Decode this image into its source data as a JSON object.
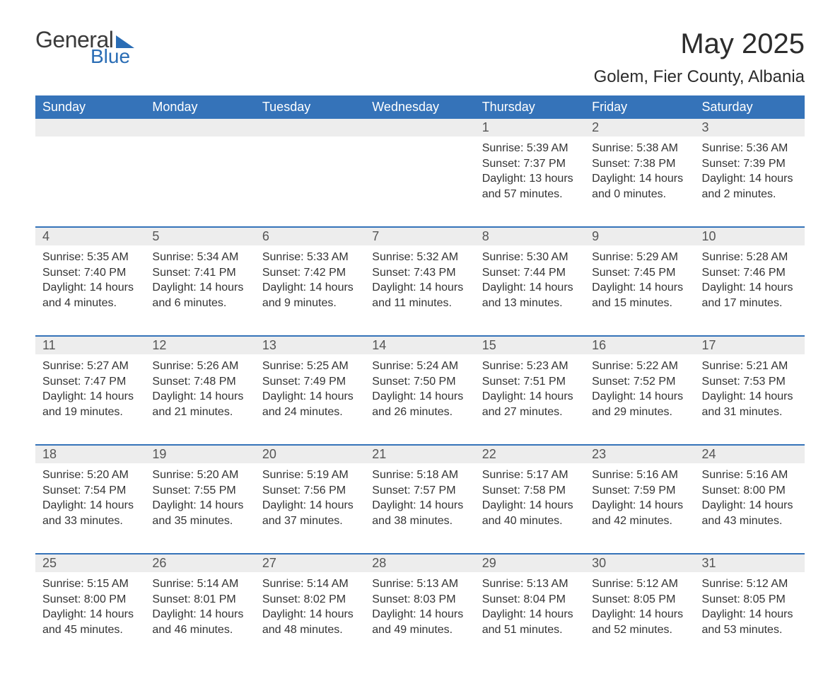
{
  "logo": {
    "text1": "General",
    "text2": "Blue",
    "triangle_color": "#2a6db5"
  },
  "title": "May 2025",
  "location": "Golem, Fier County, Albania",
  "colors": {
    "header_bg": "#3573b9",
    "header_text": "#ffffff",
    "daynum_bg": "#ededed",
    "row_border": "#3573b9",
    "body_text": "#333333",
    "title_text": "#2c2c2c"
  },
  "fonts": {
    "title_size": 40,
    "location_size": 24,
    "th_size": 18,
    "cell_size": 16
  },
  "weekdays": [
    "Sunday",
    "Monday",
    "Tuesday",
    "Wednesday",
    "Thursday",
    "Friday",
    "Saturday"
  ],
  "weeks": [
    [
      null,
      null,
      null,
      null,
      {
        "n": "1",
        "sunrise": "5:39 AM",
        "sunset": "7:37 PM",
        "dl1": "Daylight: 13 hours",
        "dl2": "and 57 minutes."
      },
      {
        "n": "2",
        "sunrise": "5:38 AM",
        "sunset": "7:38 PM",
        "dl1": "Daylight: 14 hours",
        "dl2": "and 0 minutes."
      },
      {
        "n": "3",
        "sunrise": "5:36 AM",
        "sunset": "7:39 PM",
        "dl1": "Daylight: 14 hours",
        "dl2": "and 2 minutes."
      }
    ],
    [
      {
        "n": "4",
        "sunrise": "5:35 AM",
        "sunset": "7:40 PM",
        "dl1": "Daylight: 14 hours",
        "dl2": "and 4 minutes."
      },
      {
        "n": "5",
        "sunrise": "5:34 AM",
        "sunset": "7:41 PM",
        "dl1": "Daylight: 14 hours",
        "dl2": "and 6 minutes."
      },
      {
        "n": "6",
        "sunrise": "5:33 AM",
        "sunset": "7:42 PM",
        "dl1": "Daylight: 14 hours",
        "dl2": "and 9 minutes."
      },
      {
        "n": "7",
        "sunrise": "5:32 AM",
        "sunset": "7:43 PM",
        "dl1": "Daylight: 14 hours",
        "dl2": "and 11 minutes."
      },
      {
        "n": "8",
        "sunrise": "5:30 AM",
        "sunset": "7:44 PM",
        "dl1": "Daylight: 14 hours",
        "dl2": "and 13 minutes."
      },
      {
        "n": "9",
        "sunrise": "5:29 AM",
        "sunset": "7:45 PM",
        "dl1": "Daylight: 14 hours",
        "dl2": "and 15 minutes."
      },
      {
        "n": "10",
        "sunrise": "5:28 AM",
        "sunset": "7:46 PM",
        "dl1": "Daylight: 14 hours",
        "dl2": "and 17 minutes."
      }
    ],
    [
      {
        "n": "11",
        "sunrise": "5:27 AM",
        "sunset": "7:47 PM",
        "dl1": "Daylight: 14 hours",
        "dl2": "and 19 minutes."
      },
      {
        "n": "12",
        "sunrise": "5:26 AM",
        "sunset": "7:48 PM",
        "dl1": "Daylight: 14 hours",
        "dl2": "and 21 minutes."
      },
      {
        "n": "13",
        "sunrise": "5:25 AM",
        "sunset": "7:49 PM",
        "dl1": "Daylight: 14 hours",
        "dl2": "and 24 minutes."
      },
      {
        "n": "14",
        "sunrise": "5:24 AM",
        "sunset": "7:50 PM",
        "dl1": "Daylight: 14 hours",
        "dl2": "and 26 minutes."
      },
      {
        "n": "15",
        "sunrise": "5:23 AM",
        "sunset": "7:51 PM",
        "dl1": "Daylight: 14 hours",
        "dl2": "and 27 minutes."
      },
      {
        "n": "16",
        "sunrise": "5:22 AM",
        "sunset": "7:52 PM",
        "dl1": "Daylight: 14 hours",
        "dl2": "and 29 minutes."
      },
      {
        "n": "17",
        "sunrise": "5:21 AM",
        "sunset": "7:53 PM",
        "dl1": "Daylight: 14 hours",
        "dl2": "and 31 minutes."
      }
    ],
    [
      {
        "n": "18",
        "sunrise": "5:20 AM",
        "sunset": "7:54 PM",
        "dl1": "Daylight: 14 hours",
        "dl2": "and 33 minutes."
      },
      {
        "n": "19",
        "sunrise": "5:20 AM",
        "sunset": "7:55 PM",
        "dl1": "Daylight: 14 hours",
        "dl2": "and 35 minutes."
      },
      {
        "n": "20",
        "sunrise": "5:19 AM",
        "sunset": "7:56 PM",
        "dl1": "Daylight: 14 hours",
        "dl2": "and 37 minutes."
      },
      {
        "n": "21",
        "sunrise": "5:18 AM",
        "sunset": "7:57 PM",
        "dl1": "Daylight: 14 hours",
        "dl2": "and 38 minutes."
      },
      {
        "n": "22",
        "sunrise": "5:17 AM",
        "sunset": "7:58 PM",
        "dl1": "Daylight: 14 hours",
        "dl2": "and 40 minutes."
      },
      {
        "n": "23",
        "sunrise": "5:16 AM",
        "sunset": "7:59 PM",
        "dl1": "Daylight: 14 hours",
        "dl2": "and 42 minutes."
      },
      {
        "n": "24",
        "sunrise": "5:16 AM",
        "sunset": "8:00 PM",
        "dl1": "Daylight: 14 hours",
        "dl2": "and 43 minutes."
      }
    ],
    [
      {
        "n": "25",
        "sunrise": "5:15 AM",
        "sunset": "8:00 PM",
        "dl1": "Daylight: 14 hours",
        "dl2": "and 45 minutes."
      },
      {
        "n": "26",
        "sunrise": "5:14 AM",
        "sunset": "8:01 PM",
        "dl1": "Daylight: 14 hours",
        "dl2": "and 46 minutes."
      },
      {
        "n": "27",
        "sunrise": "5:14 AM",
        "sunset": "8:02 PM",
        "dl1": "Daylight: 14 hours",
        "dl2": "and 48 minutes."
      },
      {
        "n": "28",
        "sunrise": "5:13 AM",
        "sunset": "8:03 PM",
        "dl1": "Daylight: 14 hours",
        "dl2": "and 49 minutes."
      },
      {
        "n": "29",
        "sunrise": "5:13 AM",
        "sunset": "8:04 PM",
        "dl1": "Daylight: 14 hours",
        "dl2": "and 51 minutes."
      },
      {
        "n": "30",
        "sunrise": "5:12 AM",
        "sunset": "8:05 PM",
        "dl1": "Daylight: 14 hours",
        "dl2": "and 52 minutes."
      },
      {
        "n": "31",
        "sunrise": "5:12 AM",
        "sunset": "8:05 PM",
        "dl1": "Daylight: 14 hours",
        "dl2": "and 53 minutes."
      }
    ]
  ],
  "labels": {
    "sunrise": "Sunrise: ",
    "sunset": "Sunset: "
  }
}
